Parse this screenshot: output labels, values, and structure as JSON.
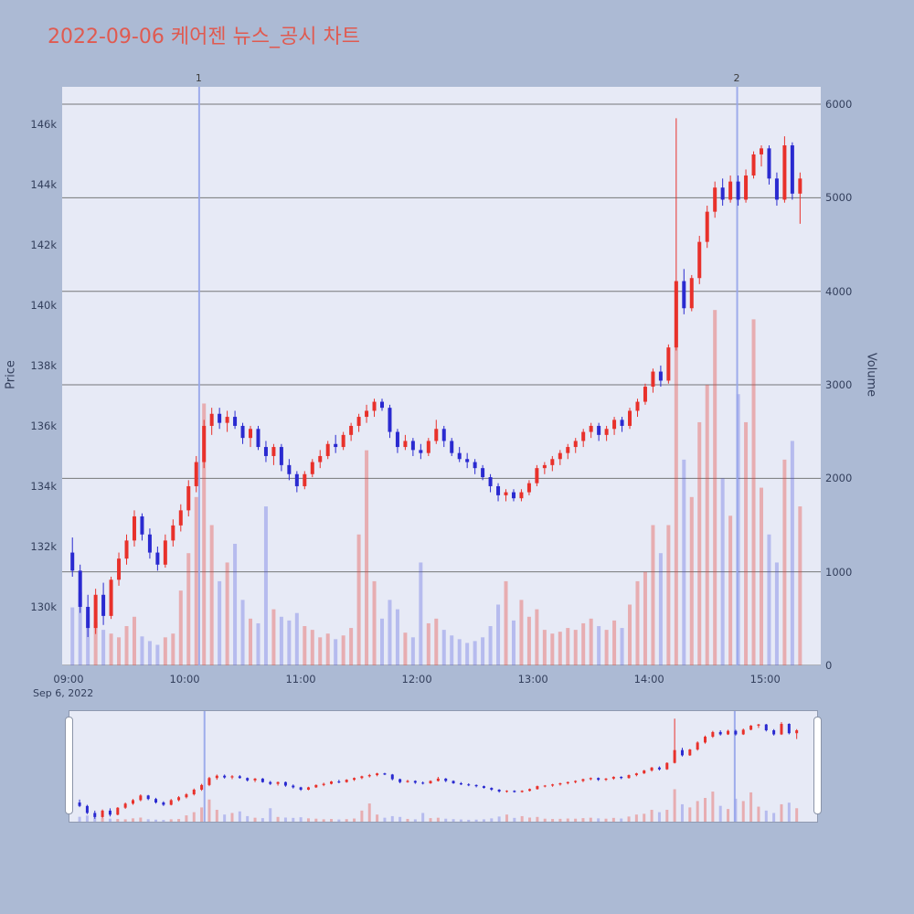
{
  "title": "2022-09-06 케어젠 뉴스_공시 차트",
  "colors": {
    "page_bg": "#acbad4",
    "plot_bg": "#e7eaf6",
    "title": "#e05a50",
    "tick_text": "#333f5c",
    "grid": "#5a5a5a",
    "annotation_line": "#96a5ea",
    "up": "#e8312b",
    "down": "#2a2ad0",
    "up_volume": "rgba(232,60,50,0.35)",
    "down_volume": "rgba(70,80,220,0.30)"
  },
  "y_axis_left": {
    "title": "Price",
    "ticks": [
      {
        "label": "130k",
        "value": 130
      },
      {
        "label": "132k",
        "value": 132
      },
      {
        "label": "134k",
        "value": 134
      },
      {
        "label": "136k",
        "value": 136
      },
      {
        "label": "138k",
        "value": 138
      },
      {
        "label": "140k",
        "value": 140
      },
      {
        "label": "142k",
        "value": 142
      },
      {
        "label": "144k",
        "value": 144
      },
      {
        "label": "146k",
        "value": 146
      }
    ]
  },
  "y_axis_right": {
    "title": "Volume",
    "ticks": [
      {
        "label": "0",
        "value": 0
      },
      {
        "label": "1000",
        "value": 1000
      },
      {
        "label": "2000",
        "value": 2000
      },
      {
        "label": "3000",
        "value": 3000
      },
      {
        "label": "4000",
        "value": 4000
      },
      {
        "label": "5000",
        "value": 5000
      },
      {
        "label": "6000",
        "value": 6000
      }
    ]
  },
  "x_axis": {
    "date_label": "Sep 6, 2022",
    "ticks": [
      {
        "label": "09:00",
        "minute": 0
      },
      {
        "label": "10:00",
        "minute": 60
      },
      {
        "label": "11:00",
        "minute": 120
      },
      {
        "label": "12:00",
        "minute": 180
      },
      {
        "label": "13:00",
        "minute": 240
      },
      {
        "label": "14:00",
        "minute": 300
      },
      {
        "label": "15:00",
        "minute": 360
      }
    ]
  },
  "annotations": [
    {
      "label": "1",
      "minute": 67.5
    },
    {
      "label": "2",
      "minute": 345.5
    }
  ],
  "chart_data": {
    "type": "candlestick+volume",
    "title": "2022-09-06 케어젠 뉴스_공시 차트",
    "x_start_time": "09:00",
    "interval_minutes": 4,
    "price_unit": "k (thousand KRW)",
    "x_range": [
      -3.3,
      388.7
    ],
    "main_price_range": [
      128.06,
      147.24
    ],
    "main_volume_max": 6186,
    "nav_price_range": [
      128.5,
      147.5
    ],
    "nav_volume_max": 6000,
    "legend": "none",
    "grid": "horizontal-volume-ticks",
    "candles_format": [
      "minute",
      "open",
      "high",
      "low",
      "close",
      "volume"
    ],
    "candles": [
      [
        0,
        131.8,
        132.3,
        131.0,
        131.2,
        620
      ],
      [
        4,
        131.2,
        131.4,
        129.8,
        130.0,
        780
      ],
      [
        8,
        130.0,
        130.4,
        129.0,
        129.3,
        540
      ],
      [
        12,
        129.3,
        130.6,
        129.1,
        130.4,
        460
      ],
      [
        16,
        130.4,
        130.8,
        129.4,
        129.7,
        380
      ],
      [
        20,
        129.7,
        131.0,
        129.6,
        130.9,
        340
      ],
      [
        24,
        130.9,
        131.8,
        130.7,
        131.6,
        300
      ],
      [
        28,
        131.6,
        132.4,
        131.4,
        132.2,
        420
      ],
      [
        32,
        132.2,
        133.2,
        132.0,
        133.0,
        520
      ],
      [
        36,
        133.0,
        133.1,
        132.2,
        132.4,
        310
      ],
      [
        40,
        132.4,
        132.6,
        131.6,
        131.8,
        260
      ],
      [
        44,
        131.8,
        132.0,
        131.2,
        131.4,
        220
      ],
      [
        48,
        131.4,
        132.4,
        131.3,
        132.2,
        300
      ],
      [
        52,
        132.2,
        132.9,
        132.0,
        132.7,
        340
      ],
      [
        56,
        132.7,
        133.4,
        132.5,
        133.2,
        800
      ],
      [
        60,
        133.2,
        134.2,
        133.0,
        134.0,
        1200
      ],
      [
        64,
        134.0,
        135.0,
        133.8,
        134.8,
        1800
      ],
      [
        68,
        134.8,
        136.2,
        134.6,
        136.0,
        2800
      ],
      [
        72,
        136.0,
        136.6,
        135.7,
        136.4,
        1500
      ],
      [
        76,
        136.4,
        136.6,
        135.9,
        136.1,
        900
      ],
      [
        80,
        136.1,
        136.5,
        135.8,
        136.3,
        1100
      ],
      [
        84,
        136.3,
        136.5,
        135.9,
        136.0,
        1300
      ],
      [
        88,
        136.0,
        136.1,
        135.4,
        135.6,
        700
      ],
      [
        92,
        135.6,
        136.0,
        135.3,
        135.9,
        500
      ],
      [
        96,
        135.9,
        136.0,
        135.2,
        135.3,
        450
      ],
      [
        100,
        135.3,
        135.5,
        134.8,
        135.0,
        1700
      ],
      [
        104,
        135.0,
        135.4,
        134.7,
        135.3,
        600
      ],
      [
        108,
        135.3,
        135.4,
        134.5,
        134.7,
        520
      ],
      [
        112,
        134.7,
        134.9,
        134.2,
        134.4,
        480
      ],
      [
        116,
        134.4,
        134.5,
        133.8,
        134.0,
        560
      ],
      [
        120,
        134.0,
        134.5,
        133.9,
        134.4,
        420
      ],
      [
        124,
        134.4,
        134.9,
        134.3,
        134.8,
        380
      ],
      [
        128,
        134.8,
        135.2,
        134.6,
        135.0,
        300
      ],
      [
        132,
        135.0,
        135.5,
        134.9,
        135.4,
        340
      ],
      [
        136,
        135.4,
        135.7,
        135.1,
        135.3,
        280
      ],
      [
        140,
        135.3,
        135.8,
        135.2,
        135.7,
        320
      ],
      [
        144,
        135.7,
        136.1,
        135.5,
        136.0,
        400
      ],
      [
        148,
        136.0,
        136.4,
        135.8,
        136.3,
        1400
      ],
      [
        152,
        136.3,
        136.7,
        136.1,
        136.5,
        2300
      ],
      [
        156,
        136.5,
        136.9,
        136.3,
        136.8,
        900
      ],
      [
        160,
        136.8,
        136.9,
        136.5,
        136.6,
        500
      ],
      [
        164,
        136.6,
        136.7,
        135.6,
        135.8,
        700
      ],
      [
        168,
        135.8,
        135.9,
        135.1,
        135.3,
        600
      ],
      [
        172,
        135.3,
        135.7,
        135.2,
        135.5,
        350
      ],
      [
        176,
        135.5,
        135.6,
        135.0,
        135.2,
        300
      ],
      [
        180,
        135.2,
        135.4,
        134.9,
        135.1,
        1100
      ],
      [
        184,
        135.1,
        135.6,
        135.0,
        135.5,
        450
      ],
      [
        188,
        135.5,
        136.2,
        135.4,
        135.9,
        500
      ],
      [
        192,
        135.9,
        136.0,
        135.3,
        135.5,
        380
      ],
      [
        196,
        135.5,
        135.6,
        135.0,
        135.1,
        320
      ],
      [
        200,
        135.1,
        135.3,
        134.8,
        134.9,
        280
      ],
      [
        204,
        134.9,
        135.1,
        134.6,
        134.8,
        240
      ],
      [
        208,
        134.8,
        134.9,
        134.4,
        134.6,
        260
      ],
      [
        212,
        134.6,
        134.7,
        134.2,
        134.3,
        300
      ],
      [
        216,
        134.3,
        134.4,
        133.8,
        134.0,
        420
      ],
      [
        220,
        134.0,
        134.1,
        133.5,
        133.7,
        650
      ],
      [
        224,
        133.7,
        133.9,
        133.5,
        133.8,
        900
      ],
      [
        228,
        133.8,
        133.9,
        133.5,
        133.6,
        480
      ],
      [
        232,
        133.6,
        133.9,
        133.5,
        133.8,
        700
      ],
      [
        236,
        133.8,
        134.2,
        133.7,
        134.1,
        520
      ],
      [
        240,
        134.1,
        134.7,
        134.0,
        134.6,
        600
      ],
      [
        244,
        134.6,
        134.8,
        134.4,
        134.7,
        380
      ],
      [
        248,
        134.7,
        135.0,
        134.5,
        134.9,
        340
      ],
      [
        252,
        134.9,
        135.2,
        134.7,
        135.1,
        360
      ],
      [
        256,
        135.1,
        135.4,
        134.9,
        135.3,
        400
      ],
      [
        260,
        135.3,
        135.6,
        135.1,
        135.5,
        380
      ],
      [
        264,
        135.5,
        135.9,
        135.3,
        135.8,
        450
      ],
      [
        268,
        135.8,
        136.1,
        135.6,
        136.0,
        500
      ],
      [
        272,
        136.0,
        136.1,
        135.5,
        135.7,
        420
      ],
      [
        276,
        135.7,
        136.0,
        135.5,
        135.9,
        380
      ],
      [
        280,
        135.9,
        136.3,
        135.7,
        136.2,
        480
      ],
      [
        284,
        136.2,
        136.3,
        135.8,
        136.0,
        400
      ],
      [
        288,
        136.0,
        136.6,
        135.9,
        136.5,
        650
      ],
      [
        292,
        136.5,
        136.9,
        136.3,
        136.8,
        900
      ],
      [
        296,
        136.8,
        137.4,
        136.7,
        137.3,
        1000
      ],
      [
        300,
        137.3,
        137.9,
        137.1,
        137.8,
        1500
      ],
      [
        304,
        137.8,
        138.0,
        137.3,
        137.5,
        1200
      ],
      [
        308,
        137.5,
        138.7,
        137.4,
        138.6,
        1500
      ],
      [
        312,
        138.6,
        146.2,
        138.5,
        140.8,
        4100
      ],
      [
        316,
        140.8,
        141.2,
        139.7,
        139.9,
        2200
      ],
      [
        320,
        139.9,
        141.0,
        139.8,
        140.9,
        1800
      ],
      [
        324,
        140.9,
        142.3,
        140.7,
        142.1,
        2600
      ],
      [
        328,
        142.1,
        143.3,
        141.9,
        143.1,
        3000
      ],
      [
        332,
        143.1,
        144.1,
        142.9,
        143.9,
        3800
      ],
      [
        336,
        143.9,
        144.2,
        143.3,
        143.5,
        2000
      ],
      [
        340,
        143.5,
        144.3,
        143.4,
        144.1,
        1600
      ],
      [
        344,
        144.1,
        144.3,
        143.3,
        143.5,
        2900
      ],
      [
        348,
        143.5,
        144.5,
        143.4,
        144.3,
        2600
      ],
      [
        352,
        144.3,
        145.1,
        144.2,
        145.0,
        3700
      ],
      [
        356,
        145.0,
        145.3,
        144.6,
        145.2,
        1900
      ],
      [
        360,
        145.2,
        145.3,
        144.0,
        144.2,
        1400
      ],
      [
        364,
        144.2,
        144.4,
        143.3,
        143.5,
        1100
      ],
      [
        368,
        143.5,
        145.6,
        143.4,
        145.3,
        2200
      ],
      [
        372,
        145.3,
        145.4,
        143.5,
        143.7,
        2400
      ],
      [
        376,
        143.7,
        144.4,
        142.7,
        144.2,
        1700
      ]
    ]
  }
}
